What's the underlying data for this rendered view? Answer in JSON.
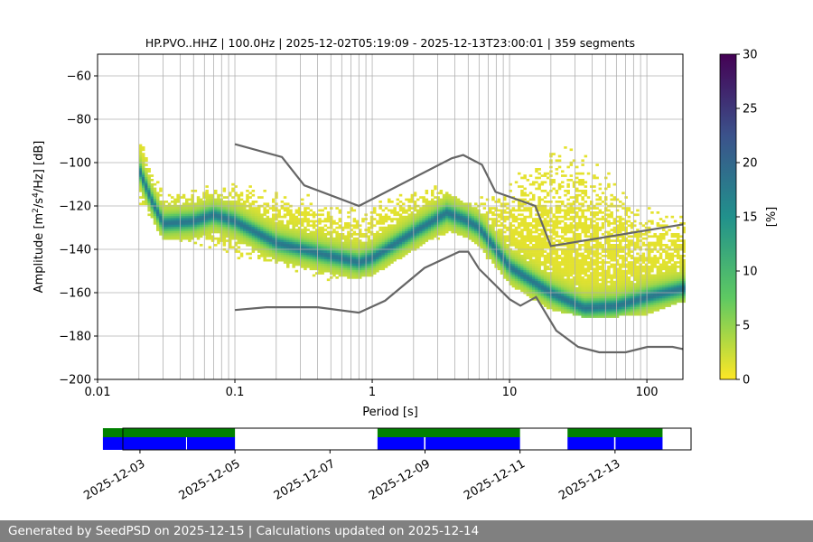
{
  "chart_data": {
    "type": "heatmap",
    "title": "HP.PVO..HHZ | 100.0Hz | 2025-12-02T05:19:09 - 2025-12-13T23:00:01 | 359 segments",
    "xlabel": "Period [s]",
    "ylabel": "Amplitude [m²/s⁴/Hz] [dB]",
    "xscale": "log",
    "xlim": [
      0.01,
      183
    ],
    "ylim": [
      -200,
      -50
    ],
    "xticks": [
      {
        "v": 0.01,
        "label": "0.01"
      },
      {
        "v": 0.1,
        "label": "0.1"
      },
      {
        "v": 1,
        "label": "1"
      },
      {
        "v": 10,
        "label": "10"
      },
      {
        "v": 100,
        "label": "100"
      }
    ],
    "yticks": [
      -200,
      -180,
      -160,
      -140,
      -120,
      -100,
      -80,
      -60
    ],
    "grid": true,
    "colorbar": {
      "label": "[%]",
      "range": [
        0,
        30
      ],
      "ticks": [
        0,
        5,
        10,
        15,
        20,
        25,
        30
      ],
      "colors": [
        "#fde725",
        "#5ec962",
        "#21918c",
        "#3b528b",
        "#440154"
      ]
    },
    "mode_curve": [
      [
        0.02,
        -103
      ],
      [
        0.025,
        -118
      ],
      [
        0.03,
        -128
      ],
      [
        0.05,
        -127
      ],
      [
        0.07,
        -124
      ],
      [
        0.1,
        -127
      ],
      [
        0.2,
        -137
      ],
      [
        0.5,
        -143
      ],
      [
        0.8,
        -146
      ],
      [
        1.0,
        -144
      ],
      [
        2,
        -132
      ],
      [
        3.5,
        -123
      ],
      [
        5,
        -127
      ],
      [
        6,
        -130
      ],
      [
        10,
        -148
      ],
      [
        20,
        -160
      ],
      [
        35,
        -167
      ],
      [
        60,
        -166
      ],
      [
        100,
        -162
      ],
      [
        183,
        -158
      ]
    ],
    "upper_envelope": [
      [
        0.02,
        -86
      ],
      [
        0.03,
        -112
      ],
      [
        0.1,
        -108
      ],
      [
        0.3,
        -112
      ],
      [
        0.8,
        -120
      ],
      [
        1.5,
        -112
      ],
      [
        3,
        -108
      ],
      [
        5,
        -118
      ],
      [
        8,
        -110
      ],
      [
        15,
        -95
      ],
      [
        25,
        -85
      ],
      [
        40,
        -92
      ],
      [
        100,
        -115
      ],
      [
        183,
        -122
      ]
    ],
    "lower_envelope": [
      [
        0.02,
        -120
      ],
      [
        0.03,
        -135
      ],
      [
        0.1,
        -145
      ],
      [
        0.5,
        -156
      ],
      [
        1,
        -152
      ],
      [
        2,
        -142
      ],
      [
        4,
        -134
      ],
      [
        6,
        -140
      ],
      [
        10,
        -158
      ],
      [
        20,
        -168
      ],
      [
        40,
        -172
      ],
      [
        100,
        -170
      ],
      [
        183,
        -164
      ]
    ],
    "nhnm": [
      [
        0.1,
        -91.5
      ],
      [
        0.22,
        -97.4
      ],
      [
        0.32,
        -110.5
      ],
      [
        0.8,
        -120
      ],
      [
        3.8,
        -98
      ],
      [
        4.6,
        -96.5
      ],
      [
        6.3,
        -101
      ],
      [
        7.9,
        -113.5
      ],
      [
        15.4,
        -120
      ],
      [
        20,
        -138.5
      ],
      [
        183,
        -128.5
      ]
    ],
    "nlnm": [
      [
        0.1,
        -168
      ],
      [
        0.17,
        -166.7
      ],
      [
        0.4,
        -166.7
      ],
      [
        0.8,
        -169.2
      ],
      [
        1.24,
        -163.7
      ],
      [
        2.4,
        -148.6
      ],
      [
        4.3,
        -141.1
      ],
      [
        5,
        -141.1
      ],
      [
        6,
        -149
      ],
      [
        10,
        -163
      ],
      [
        12,
        -166
      ],
      [
        15.6,
        -162
      ],
      [
        21.9,
        -177.5
      ],
      [
        31.6,
        -185
      ],
      [
        45,
        -187.5
      ],
      [
        70,
        -187.5
      ],
      [
        101,
        -185
      ],
      [
        154,
        -185
      ],
      [
        183,
        -186
      ]
    ],
    "model_color": "#666666",
    "coverage": {
      "xlim_days": [
        -0.36,
        11.6
      ],
      "day0": "2025-12-03",
      "ticks": [
        "2025-12-03",
        "2025-12-05",
        "2025-12-07",
        "2025-12-09",
        "2025-12-11",
        "2025-12-13"
      ],
      "green": [
        [
          -0.78,
          2.0
        ],
        [
          5.0,
          8.0
        ],
        [
          9.0,
          11.0
        ]
      ],
      "blue": [
        [
          -0.78,
          0.97
        ],
        [
          0.99,
          2.0
        ],
        [
          5.0,
          5.98
        ],
        [
          6.01,
          8.0
        ],
        [
          9.0,
          9.98
        ],
        [
          10.01,
          11.0
        ]
      ],
      "green_color": "#008000",
      "blue_color": "#0000ff"
    }
  },
  "footer": "Generated by SeedPSD on 2025-12-15 | Calculations updated on 2025-12-14"
}
